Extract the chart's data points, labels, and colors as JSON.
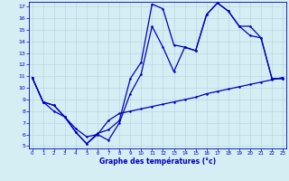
{
  "xlabel": "Graphe des températures (°c)",
  "ylim": [
    5,
    17
  ],
  "xlim": [
    0,
    23
  ],
  "yticks": [
    5,
    6,
    7,
    8,
    9,
    10,
    11,
    12,
    13,
    14,
    15,
    16,
    17
  ],
  "xticks": [
    0,
    1,
    2,
    3,
    4,
    5,
    6,
    7,
    8,
    9,
    10,
    11,
    12,
    13,
    14,
    15,
    16,
    17,
    18,
    19,
    20,
    21,
    22,
    23
  ],
  "bg_color": "#d4eef4",
  "grid_color": "#b8d8e0",
  "line_color": "#0000bb",
  "series": [
    {
      "x": [
        0,
        1,
        2,
        3,
        4,
        5,
        6,
        7,
        8,
        9,
        10,
        11,
        12,
        13,
        14,
        15,
        16,
        17,
        18,
        19,
        20,
        21,
        22,
        23
      ],
      "y": [
        10.9,
        8.8,
        8.5,
        7.5,
        6.2,
        5.2,
        6.1,
        6.4,
        7.2,
        10.8,
        12.2,
        17.2,
        16.8,
        13.7,
        13.5,
        13.2,
        16.3,
        17.3,
        16.6,
        15.3,
        15.3,
        14.3,
        10.8,
        10.8
      ],
      "ls": "-"
    },
    {
      "x": [
        0,
        1,
        2,
        3,
        4,
        5,
        6,
        7,
        8,
        9,
        10,
        11,
        12,
        13,
        14,
        15,
        16,
        17,
        18,
        19,
        20,
        21,
        22,
        23
      ],
      "y": [
        10.9,
        8.8,
        8.5,
        7.5,
        6.2,
        5.2,
        6.0,
        5.5,
        7.0,
        9.5,
        11.2,
        15.3,
        13.5,
        11.4,
        13.5,
        13.2,
        16.3,
        17.3,
        16.6,
        15.3,
        14.5,
        14.3,
        10.8,
        10.8
      ],
      "ls": "-"
    },
    {
      "x": [
        0,
        1,
        2,
        3,
        4,
        5,
        6,
        7,
        8,
        9,
        10,
        11,
        12,
        13,
        14,
        15,
        16,
        17,
        18,
        19,
        20,
        21,
        22,
        23
      ],
      "y": [
        10.9,
        8.8,
        8.0,
        7.5,
        6.5,
        5.8,
        6.0,
        7.2,
        7.8,
        8.0,
        8.2,
        8.4,
        8.6,
        8.8,
        9.0,
        9.2,
        9.5,
        9.7,
        9.9,
        10.1,
        10.3,
        10.5,
        10.7,
        10.9
      ],
      "ls": "-"
    }
  ]
}
